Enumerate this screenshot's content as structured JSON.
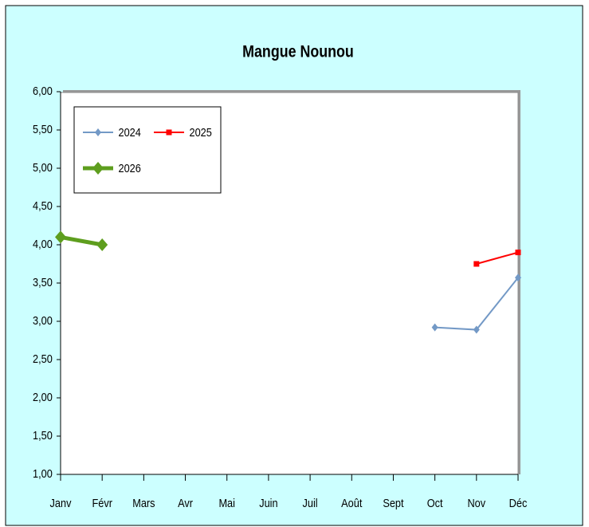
{
  "chart_data": {
    "type": "line",
    "title": "Mangue Nounou",
    "categories": [
      "Janv",
      "Févr",
      "Mars",
      "Avr",
      "Mai",
      "Juin",
      "Juil",
      "Août",
      "Sept",
      "Oct",
      "Nov",
      "Déc"
    ],
    "series": [
      {
        "name": "2024",
        "color": "#7399c6",
        "marker": "diamond",
        "width": 2,
        "values": [
          null,
          null,
          null,
          null,
          null,
          null,
          null,
          null,
          null,
          2.92,
          2.89,
          3.57
        ]
      },
      {
        "name": "2025",
        "color": "#ff0000",
        "marker": "square",
        "width": 2,
        "values": [
          null,
          null,
          null,
          null,
          null,
          null,
          null,
          null,
          null,
          null,
          3.75,
          3.9
        ]
      },
      {
        "name": "2026",
        "color": "#5e9e1e",
        "marker": "diamond",
        "width": 5,
        "values": [
          4.1,
          4.0,
          null,
          null,
          null,
          null,
          null,
          null,
          null,
          null,
          null,
          null
        ]
      }
    ],
    "ylim": [
      1,
      6
    ],
    "yticks": [
      {
        "value": 1,
        "label": "1,00"
      },
      {
        "value": 1.5,
        "label": "1,50"
      },
      {
        "value": 2,
        "label": "2,00"
      },
      {
        "value": 2.5,
        "label": "2,50"
      },
      {
        "value": 3,
        "label": "3,00"
      },
      {
        "value": 3.5,
        "label": "3,50"
      },
      {
        "value": 4,
        "label": "4,00"
      },
      {
        "value": 4.5,
        "label": "4,50"
      },
      {
        "value": 5,
        "label": "5,00"
      },
      {
        "value": 5.5,
        "label": "5,50"
      },
      {
        "value": 6,
        "label": "6,00"
      }
    ],
    "legend": "top-left"
  }
}
